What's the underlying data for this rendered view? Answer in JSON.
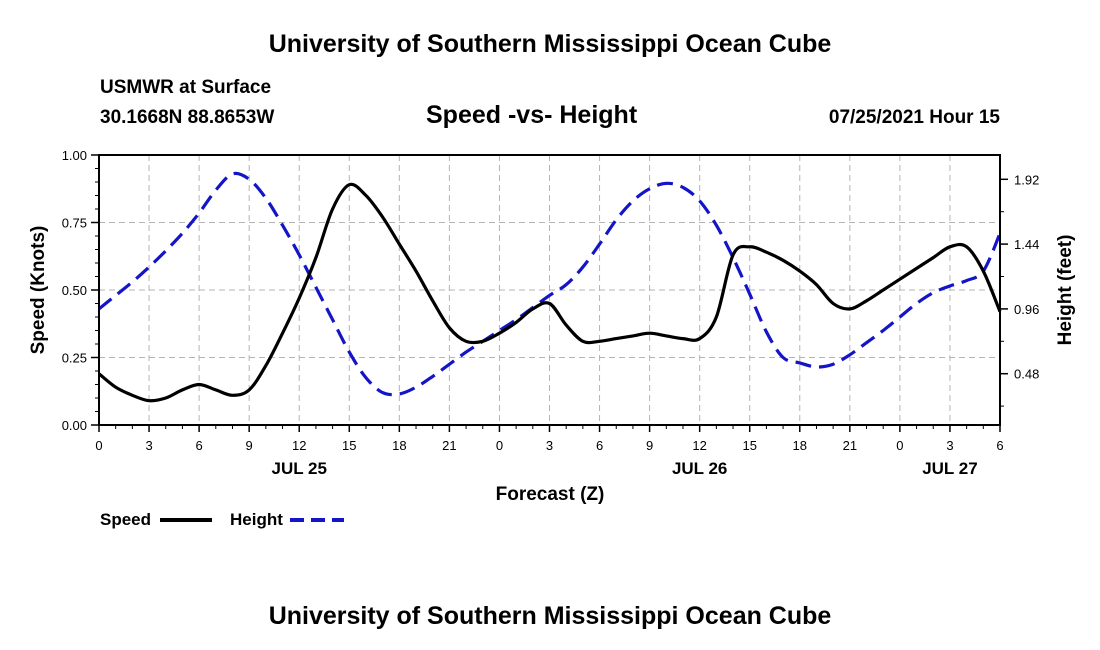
{
  "header": {
    "title": "University of Southern Mississippi Ocean Cube",
    "station": "USMWR at Surface",
    "location": "30.1668N  88.8653W",
    "datetime": "07/25/2021 Hour 15"
  },
  "footer": {
    "title": "University of Southern Mississippi Ocean Cube"
  },
  "colors": {
    "speed": "#000000",
    "height": "#1515c8",
    "grid": "#b4b4b4"
  },
  "chart_data": {
    "type": "line",
    "title": "Speed -vs- Height",
    "xlabel": "Forecast (Z)",
    "ylabel": "Speed (Knots)",
    "y2label": "Height (feet)",
    "xlim": [
      0,
      54
    ],
    "ylim": [
      0,
      1.0
    ],
    "y2lim": [
      0.1,
      2.1
    ],
    "grid": true,
    "legend_position": "bottom-left",
    "x_ticks": [
      0,
      3,
      6,
      9,
      12,
      15,
      18,
      21,
      24,
      27,
      30,
      33,
      36,
      39,
      42,
      45,
      48,
      51,
      54
    ],
    "x_tick_labels": [
      "0",
      "3",
      "6",
      "9",
      "12",
      "15",
      "18",
      "21",
      "0",
      "3",
      "6",
      "9",
      "12",
      "15",
      "18",
      "21",
      "0",
      "3",
      "6"
    ],
    "y_ticks": [
      0,
      0.25,
      0.5,
      0.75,
      1.0
    ],
    "y_tick_labels": [
      "0.00",
      "0.25",
      "0.50",
      "0.75",
      "1.00"
    ],
    "y2_ticks": [
      0.48,
      0.96,
      1.44,
      1.92
    ],
    "y2_tick_labels": [
      "0.48",
      "0.96",
      "1.44",
      "1.92"
    ],
    "date_labels": [
      {
        "x": 12,
        "label": "JUL 25"
      },
      {
        "x": 36,
        "label": "JUL 26"
      },
      {
        "x": 51,
        "label": "JUL 27"
      }
    ],
    "series": [
      {
        "name": "Speed",
        "axis": "left",
        "style": "solid",
        "x": [
          0,
          1,
          2,
          3,
          4,
          5,
          6,
          7,
          8,
          9,
          10,
          11,
          12,
          13,
          14,
          15,
          16,
          17,
          18,
          19,
          20,
          21,
          22,
          23,
          24,
          25,
          26,
          27,
          28,
          29,
          30,
          31,
          32,
          33,
          34,
          35,
          36,
          37,
          38,
          39,
          40,
          41,
          42,
          43,
          44,
          45,
          46,
          47,
          48,
          49,
          50,
          51,
          52,
          53,
          54
        ],
        "values": [
          0.19,
          0.14,
          0.11,
          0.09,
          0.1,
          0.13,
          0.15,
          0.13,
          0.11,
          0.13,
          0.22,
          0.34,
          0.47,
          0.62,
          0.8,
          0.89,
          0.85,
          0.77,
          0.67,
          0.57,
          0.46,
          0.36,
          0.31,
          0.31,
          0.34,
          0.38,
          0.43,
          0.45,
          0.37,
          0.31,
          0.31,
          0.32,
          0.33,
          0.34,
          0.33,
          0.32,
          0.32,
          0.4,
          0.63,
          0.66,
          0.64,
          0.61,
          0.57,
          0.52,
          0.45,
          0.43,
          0.46,
          0.5,
          0.54,
          0.58,
          0.62,
          0.66,
          0.66,
          0.57,
          0.42
        ]
      },
      {
        "name": "Height",
        "axis": "right",
        "style": "dashed",
        "x": [
          0,
          1,
          2,
          3,
          4,
          5,
          6,
          7,
          8,
          9,
          10,
          11,
          12,
          13,
          14,
          15,
          16,
          17,
          18,
          19,
          20,
          21,
          22,
          23,
          24,
          25,
          26,
          27,
          28,
          29,
          30,
          31,
          32,
          33,
          34,
          35,
          36,
          37,
          38,
          39,
          40,
          41,
          42,
          43,
          44,
          45,
          46,
          47,
          48,
          49,
          50,
          51,
          52,
          53,
          54
        ],
        "values": [
          0.96,
          1.06,
          1.16,
          1.27,
          1.39,
          1.52,
          1.67,
          1.84,
          1.96,
          1.92,
          1.78,
          1.58,
          1.36,
          1.12,
          0.88,
          0.64,
          0.45,
          0.34,
          0.33,
          0.38,
          0.46,
          0.55,
          0.64,
          0.72,
          0.8,
          0.88,
          0.97,
          1.06,
          1.14,
          1.27,
          1.44,
          1.62,
          1.76,
          1.85,
          1.89,
          1.86,
          1.76,
          1.58,
          1.34,
          1.07,
          0.79,
          0.6,
          0.56,
          0.53,
          0.55,
          0.62,
          0.71,
          0.8,
          0.9,
          1.0,
          1.08,
          1.13,
          1.17,
          1.24,
          1.52
        ]
      }
    ]
  }
}
